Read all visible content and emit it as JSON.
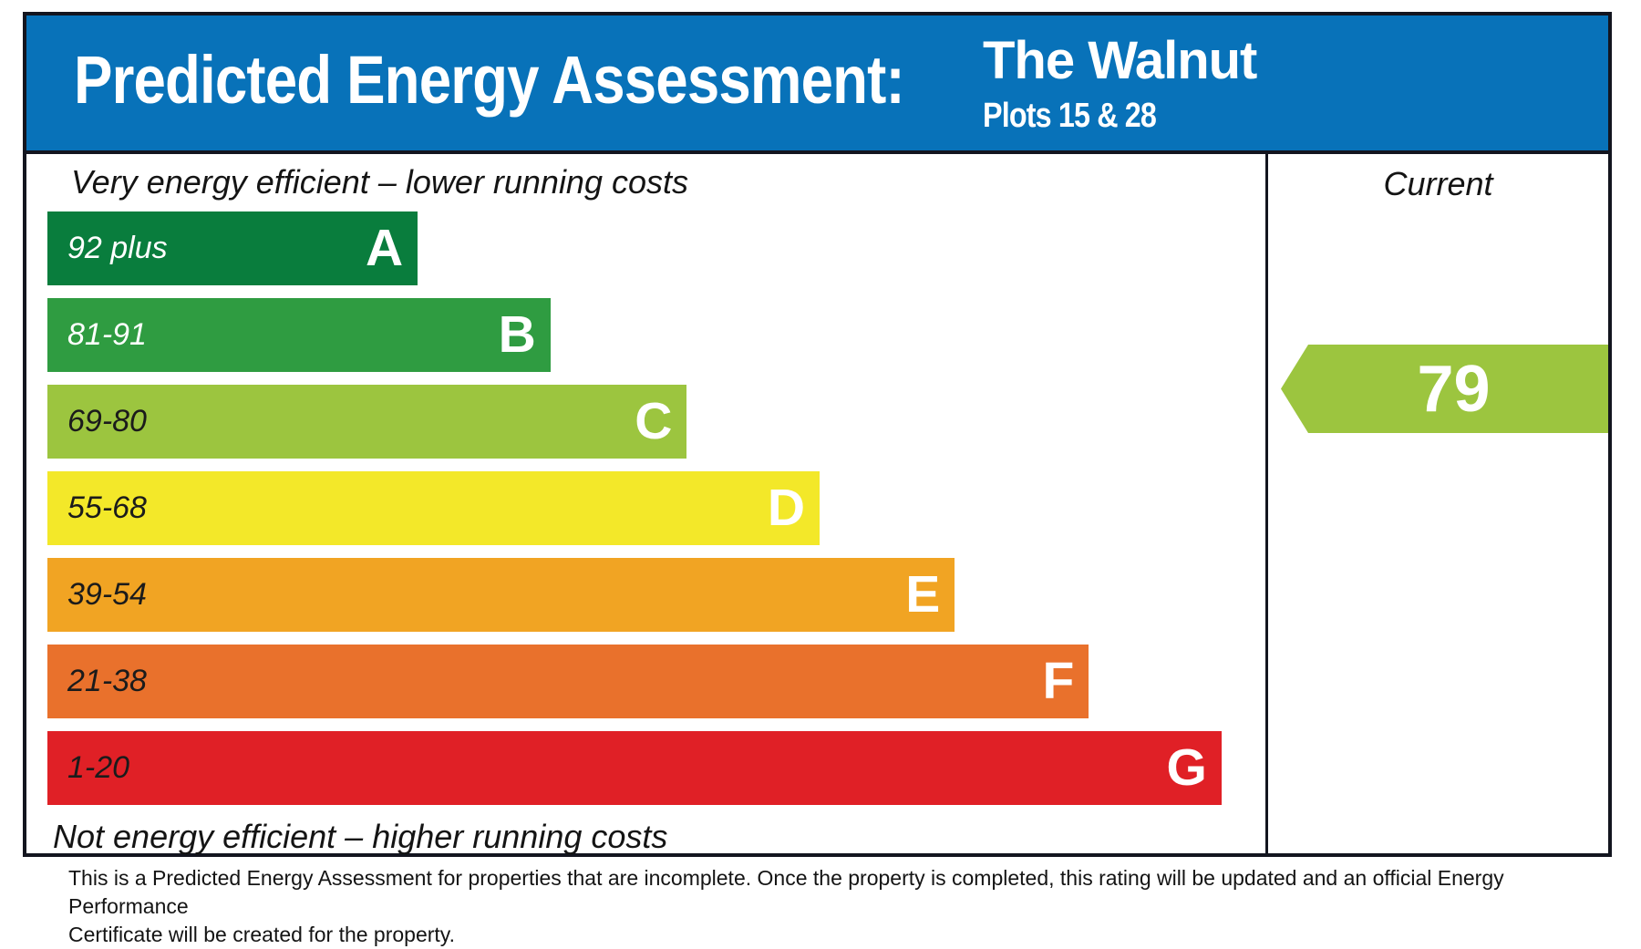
{
  "header": {
    "title": "Predicted Energy Assessment:",
    "property_name": "The Walnut",
    "property_plots": "Plots 15 & 28",
    "bg_color": "#0872b9",
    "text_color": "#ffffff"
  },
  "chart_data": {
    "type": "bar",
    "title": "Predicted Energy Assessment",
    "top_caption": "Very energy efficient – lower running costs",
    "bottom_caption": "Not energy efficient – higher running costs",
    "column_header": "Current",
    "current_rating": {
      "value": "79",
      "band": "C",
      "arrow_color": "#9cc53f",
      "arrow_direction": "left"
    },
    "bands": [
      {
        "letter": "A",
        "range": "92 plus",
        "color": "#097d3d",
        "range_color": "#ffffff",
        "width_pct": 30.4
      },
      {
        "letter": "B",
        "range": "81-91",
        "color": "#2f9c41",
        "range_color": "#ffffff",
        "width_pct": 41.3
      },
      {
        "letter": "C",
        "range": "69-80",
        "color": "#9cc53f",
        "range_color": "#1b1b1b",
        "width_pct": 52.5
      },
      {
        "letter": "D",
        "range": "55-68",
        "color": "#f3e829",
        "range_color": "#1b1b1b",
        "width_pct": 63.4
      },
      {
        "letter": "E",
        "range": "39-54",
        "color": "#f1a423",
        "range_color": "#1b1b1b",
        "width_pct": 74.5
      },
      {
        "letter": "F",
        "range": "21-38",
        "color": "#e9712c",
        "range_color": "#1b1b1b",
        "width_pct": 85.5
      },
      {
        "letter": "G",
        "range": "1-20",
        "color": "#e02026",
        "range_color": "#1b1b1b",
        "width_pct": 96.4
      }
    ],
    "legend_position": "none",
    "grid": false
  },
  "footer": {
    "line1": "This is a Predicted Energy Assessment for properties that are incomplete. Once the property is completed, this rating will be updated and an official Energy Performance",
    "line2": "Certificate will be created for the property."
  }
}
